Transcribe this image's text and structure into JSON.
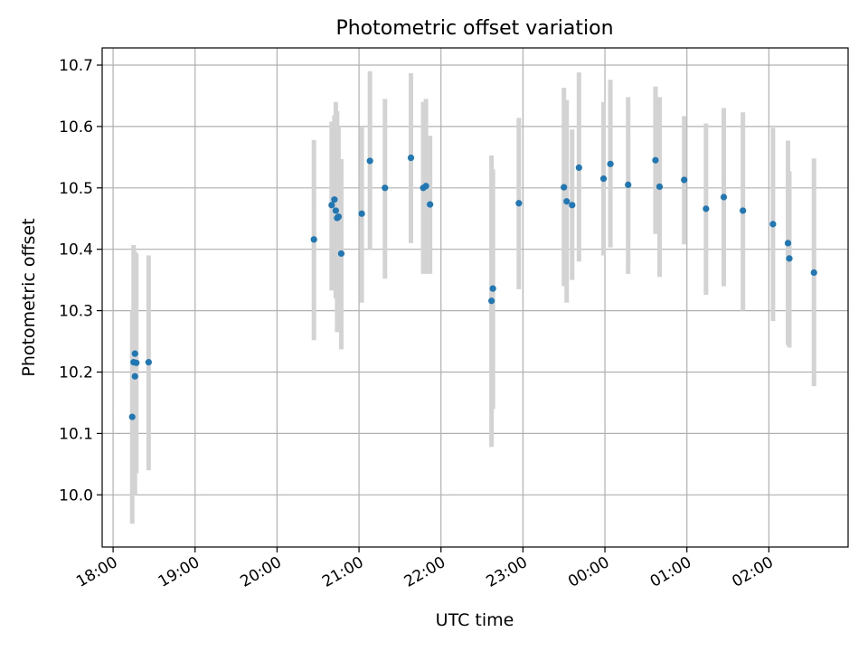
{
  "chart_data": {
    "type": "scatter",
    "title": "Photometric offset variation",
    "xlabel": "UTC time",
    "ylabel": "Photometric offset",
    "x_unit": "UTC clock time (HH:MM), spanning midnight",
    "xlim": [
      "17:52",
      "02:58"
    ],
    "ylim": [
      9.915,
      10.728
    ],
    "x_ticks": [
      "18:00",
      "19:00",
      "20:00",
      "21:00",
      "22:00",
      "23:00",
      "00:00",
      "01:00",
      "02:00"
    ],
    "y_ticks": [
      10.0,
      10.1,
      10.2,
      10.3,
      10.4,
      10.5,
      10.6,
      10.7
    ],
    "grid": true,
    "legend": "none",
    "colors": {
      "point": "#1f77b4",
      "errorbar": "#d3d3d3",
      "grid": "#b0b0b0",
      "axes": "#000000"
    },
    "series": [
      {
        "points": [
          {
            "x": "18:14",
            "y": 10.127,
            "low": 9.953,
            "high": 10.3
          },
          {
            "x": "18:15",
            "y": 10.216,
            "low": 10.0,
            "high": 10.407
          },
          {
            "x": "18:16",
            "y": 10.23,
            "low": 10.04,
            "high": 10.396
          },
          {
            "x": "18:16",
            "y": 10.193,
            "low": 10.0,
            "high": 10.372
          },
          {
            "x": "18:17",
            "y": 10.215,
            "low": 10.035,
            "high": 10.393
          },
          {
            "x": "18:26",
            "y": 10.216,
            "low": 10.04,
            "high": 10.39
          },
          {
            "x": "20:27",
            "y": 10.416,
            "low": 10.252,
            "high": 10.578
          },
          {
            "x": "20:40",
            "y": 10.472,
            "low": 10.333,
            "high": 10.608
          },
          {
            "x": "20:42",
            "y": 10.481,
            "low": 10.343,
            "high": 10.618
          },
          {
            "x": "20:43",
            "y": 10.463,
            "low": 10.32,
            "high": 10.64
          },
          {
            "x": "20:44",
            "y": 10.451,
            "low": 10.265,
            "high": 10.625
          },
          {
            "x": "20:45",
            "y": 10.453,
            "low": 10.29,
            "high": 10.6
          },
          {
            "x": "20:47",
            "y": 10.393,
            "low": 10.237,
            "high": 10.547
          },
          {
            "x": "21:02",
            "y": 10.458,
            "low": 10.313,
            "high": 10.6
          },
          {
            "x": "21:08",
            "y": 10.544,
            "low": 10.4,
            "high": 10.69
          },
          {
            "x": "21:19",
            "y": 10.5,
            "low": 10.352,
            "high": 10.645
          },
          {
            "x": "21:38",
            "y": 10.549,
            "low": 10.41,
            "high": 10.687
          },
          {
            "x": "21:47",
            "y": 10.5,
            "low": 10.36,
            "high": 10.64
          },
          {
            "x": "21:49",
            "y": 10.503,
            "low": 10.36,
            "high": 10.645
          },
          {
            "x": "21:52",
            "y": 10.473,
            "low": 10.36,
            "high": 10.585
          },
          {
            "x": "22:37",
            "y": 10.316,
            "low": 10.078,
            "high": 10.553
          },
          {
            "x": "22:38",
            "y": 10.336,
            "low": 10.14,
            "high": 10.53
          },
          {
            "x": "22:57",
            "y": 10.475,
            "low": 10.335,
            "high": 10.614
          },
          {
            "x": "23:30",
            "y": 10.501,
            "low": 10.34,
            "high": 10.663
          },
          {
            "x": "23:32",
            "y": 10.478,
            "low": 10.313,
            "high": 10.643
          },
          {
            "x": "23:36",
            "y": 10.472,
            "low": 10.35,
            "high": 10.595
          },
          {
            "x": "23:41",
            "y": 10.533,
            "low": 10.38,
            "high": 10.688
          },
          {
            "x": "23:59",
            "y": 10.515,
            "low": 10.39,
            "high": 10.64
          },
          {
            "x": "00:04",
            "y": 10.539,
            "low": 10.403,
            "high": 10.676
          },
          {
            "x": "00:17",
            "y": 10.505,
            "low": 10.36,
            "high": 10.648
          },
          {
            "x": "00:37",
            "y": 10.545,
            "low": 10.425,
            "high": 10.665
          },
          {
            "x": "00:40",
            "y": 10.502,
            "low": 10.355,
            "high": 10.648
          },
          {
            "x": "00:58",
            "y": 10.513,
            "low": 10.408,
            "high": 10.617
          },
          {
            "x": "01:14",
            "y": 10.466,
            "low": 10.326,
            "high": 10.605
          },
          {
            "x": "01:27",
            "y": 10.485,
            "low": 10.34,
            "high": 10.63
          },
          {
            "x": "01:41",
            "y": 10.463,
            "low": 10.3,
            "high": 10.623
          },
          {
            "x": "02:03",
            "y": 10.441,
            "low": 10.283,
            "high": 10.598
          },
          {
            "x": "02:14",
            "y": 10.41,
            "low": 10.244,
            "high": 10.577
          },
          {
            "x": "02:15",
            "y": 10.385,
            "low": 10.24,
            "high": 10.527
          },
          {
            "x": "02:33",
            "y": 10.362,
            "low": 10.177,
            "high": 10.548
          }
        ]
      }
    ]
  }
}
